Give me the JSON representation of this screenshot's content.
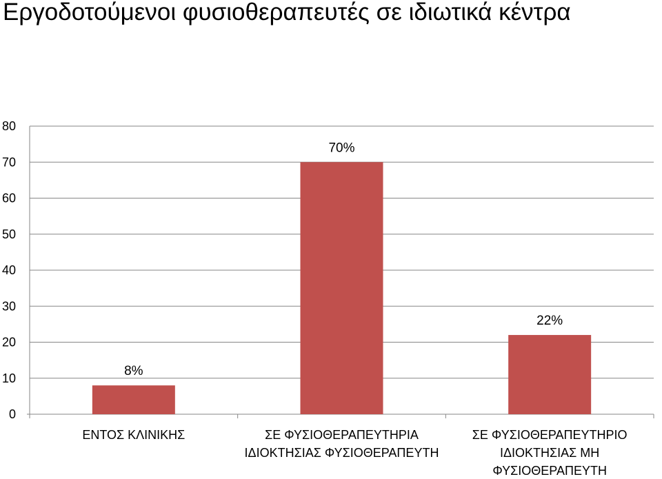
{
  "chart_data": {
    "type": "bar",
    "title": "Εργοδοτούμενοι φυσιοθεραπευτές σε ιδιωτικά κέντρα",
    "categories": [
      [
        "ΕΝΤΟΣ  ΚΛΙΝΙΚΗΣ"
      ],
      [
        "ΣΕ ΦΥΣΙΟΘΕΡΑΠΕΥΤΗΡΙΑ",
        "ΙΔΙΟΚΤΗΣΙΑΣ ΦΥΣΙΟΘΕΡΑΠΕΥΤΗ"
      ],
      [
        "ΣΕ ΦΥΣΙΟΘΕΡΑΠΕΥΤΗΡΙΟ",
        "ΙΔΙΟΚΤΗΣΙΑΣ ΜΗ",
        "ΦΥΣΙΟΘΕΡΑΠΕΥΤΗ"
      ]
    ],
    "values": [
      8,
      70,
      22
    ],
    "data_labels": [
      "8%",
      "70%",
      "22%"
    ],
    "ylim": [
      0,
      80
    ],
    "yticks": [
      "0",
      "10",
      "20",
      "30",
      "40",
      "50",
      "60",
      "70",
      "80"
    ],
    "grid": true,
    "legend": "none",
    "bar_color": "#c0504d",
    "grid_color": "#868686"
  }
}
